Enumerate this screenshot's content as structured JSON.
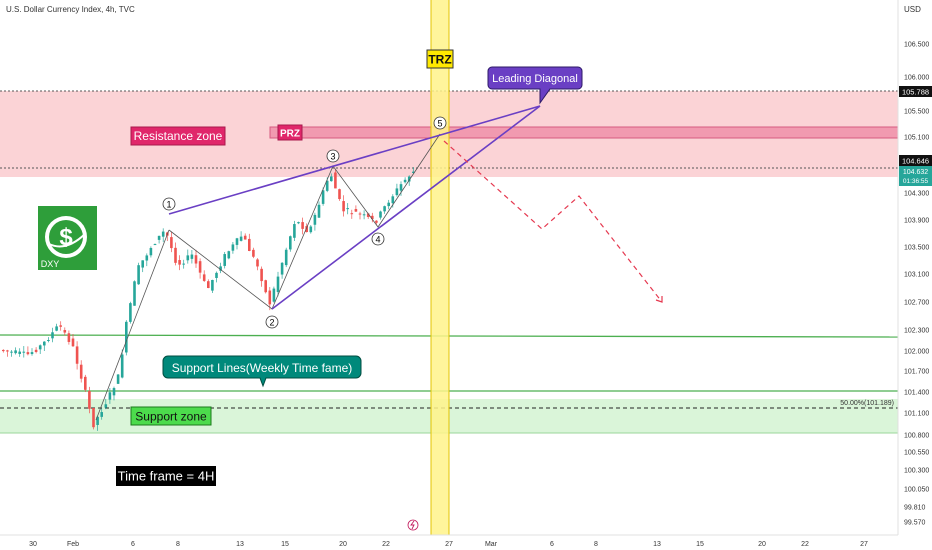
{
  "header": {
    "symbol_title": "U.S. Dollar Currency Index, 4h, TVC",
    "currency": "USD"
  },
  "chart_data": {
    "type": "candlestick",
    "y_ticks": [
      "106.500",
      "106.000",
      "105.500",
      "105.100",
      "104.300",
      "103.900",
      "103.500",
      "103.100",
      "102.700",
      "102.300",
      "102.000",
      "101.700",
      "101.400",
      "101.100",
      "100.800",
      "100.550",
      "100.300",
      "100.050",
      "99.810",
      "99.570"
    ],
    "y_tick_values": [
      106.5,
      106.0,
      105.5,
      105.1,
      104.3,
      103.9,
      103.5,
      103.1,
      102.7,
      102.3,
      102.0,
      101.7,
      101.4,
      101.1,
      100.8,
      100.55,
      100.3,
      100.05,
      99.81,
      99.57
    ],
    "x_ticks": [
      "30",
      "Feb",
      "6",
      "8",
      "13",
      "15",
      "20",
      "22",
      "27",
      "Mar",
      "6",
      "8",
      "13",
      "15",
      "20",
      "22",
      "27"
    ],
    "price_labels": {
      "level_high": "105.788",
      "level_current": "104.646",
      "last_price": "104.632",
      "countdown": "01:36:55"
    },
    "fib_label": "50.00%(101.189)",
    "wave_labels": [
      "1",
      "2",
      "3",
      "4",
      "5"
    ],
    "wave_points": [
      {
        "label": "1",
        "price": 104.1
      },
      {
        "label": "2",
        "price": 102.55
      },
      {
        "label": "3",
        "price": 104.65
      },
      {
        "label": "4",
        "price": 103.8
      },
      {
        "label": "5",
        "price": 105.1
      }
    ],
    "zones": {
      "resistance": [
        104.55,
        105.8
      ],
      "prz": [
        105.05,
        105.2
      ],
      "support": [
        100.85,
        101.25
      ],
      "support_lines": [
        102.2,
        101.4
      ]
    },
    "annotations": {
      "resistance_zone": "Resistance zone",
      "prz": "PRZ",
      "trz": "TRZ",
      "leading_diagonal": "Leading Diagonal",
      "support_lines": "Support Lines(Weekly Time fame)",
      "support_zone": "Support zone",
      "timeframe": "Time frame = 4H",
      "logo_text": "DXY"
    },
    "colors": {
      "up": "#26a69a",
      "down": "#ef5350",
      "resistance_fill": "#fbd3d6",
      "support_fill": "#daf5d9",
      "trz_fill": "#fff38a",
      "diagonal": "#6a3fc4",
      "support_line": "#4caf50",
      "projection": "#e53950"
    }
  }
}
